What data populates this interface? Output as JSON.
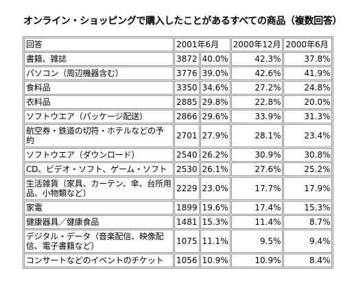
{
  "title": "オンライン・ショッピングで購入したことがあるすべての商品（複数回答）",
  "table": {
    "header": {
      "item": "回答",
      "col2001": "2001年6月",
      "col2000dec": "2000年12月",
      "col2000jun": "2000年6月"
    },
    "rows": [
      {
        "item": "書籍、雑誌",
        "count": "3872",
        "pct2001": "40.0%",
        "pct2000dec": "42.3%",
        "pct2000jun": "37.8%"
      },
      {
        "item": "パソコン（周辺機器含む）",
        "count": "3776",
        "pct2001": "39.0%",
        "pct2000dec": "42.6%",
        "pct2000jun": "41.9%"
      },
      {
        "item": "食料品",
        "count": "3350",
        "pct2001": "34.6%",
        "pct2000dec": "27.2%",
        "pct2000jun": "24.8%"
      },
      {
        "item": "衣料品",
        "count": "2885",
        "pct2001": "29.8%",
        "pct2000dec": "22.8%",
        "pct2000jun": "20.0%"
      },
      {
        "item": "ソフトウエア（パッケージ配送）",
        "count": "2866",
        "pct2001": "29.6%",
        "pct2000dec": "33.9%",
        "pct2000jun": "31.3%"
      },
      {
        "item": "航空券・鉄道の切符・ホテルなどの予約",
        "count": "2701",
        "pct2001": "27.9%",
        "pct2000dec": "28.1%",
        "pct2000jun": "23.4%"
      },
      {
        "item": "ソフトウエア（ダウンロード）",
        "count": "2540",
        "pct2001": "26.2%",
        "pct2000dec": "30.9%",
        "pct2000jun": "30.8%"
      },
      {
        "item": "CD、ビデオ・ソフト、ゲーム・ソフト",
        "count": "2530",
        "pct2001": "26.1%",
        "pct2000dec": "27.6%",
        "pct2000jun": "25.2%"
      },
      {
        "item": "生活雑貨（家具、カーテン、傘、台所用品、小物類など）",
        "count": "2229",
        "pct2001": "23.0%",
        "pct2000dec": "17.7%",
        "pct2000jun": "17.9%"
      },
      {
        "item": "家電",
        "count": "1899",
        "pct2001": "19.6%",
        "pct2000dec": "17.4%",
        "pct2000jun": "15.3%"
      },
      {
        "item": "健康器具／健康食品",
        "count": "1481",
        "pct2001": "15.3%",
        "pct2000dec": "11.4%",
        "pct2000jun": "8.7%"
      },
      {
        "item": "デジタル・データ（音楽配信、映像配信、電子書籍など）",
        "count": "1075",
        "pct2001": "11.1%",
        "pct2000dec": "9.5%",
        "pct2000jun": "9.4%"
      },
      {
        "item": "コンサートなどのイベントのチケット",
        "count": "1056",
        "pct2001": "10.9%",
        "pct2000dec": "10.9%",
        "pct2000jun": "8.4%"
      }
    ]
  }
}
